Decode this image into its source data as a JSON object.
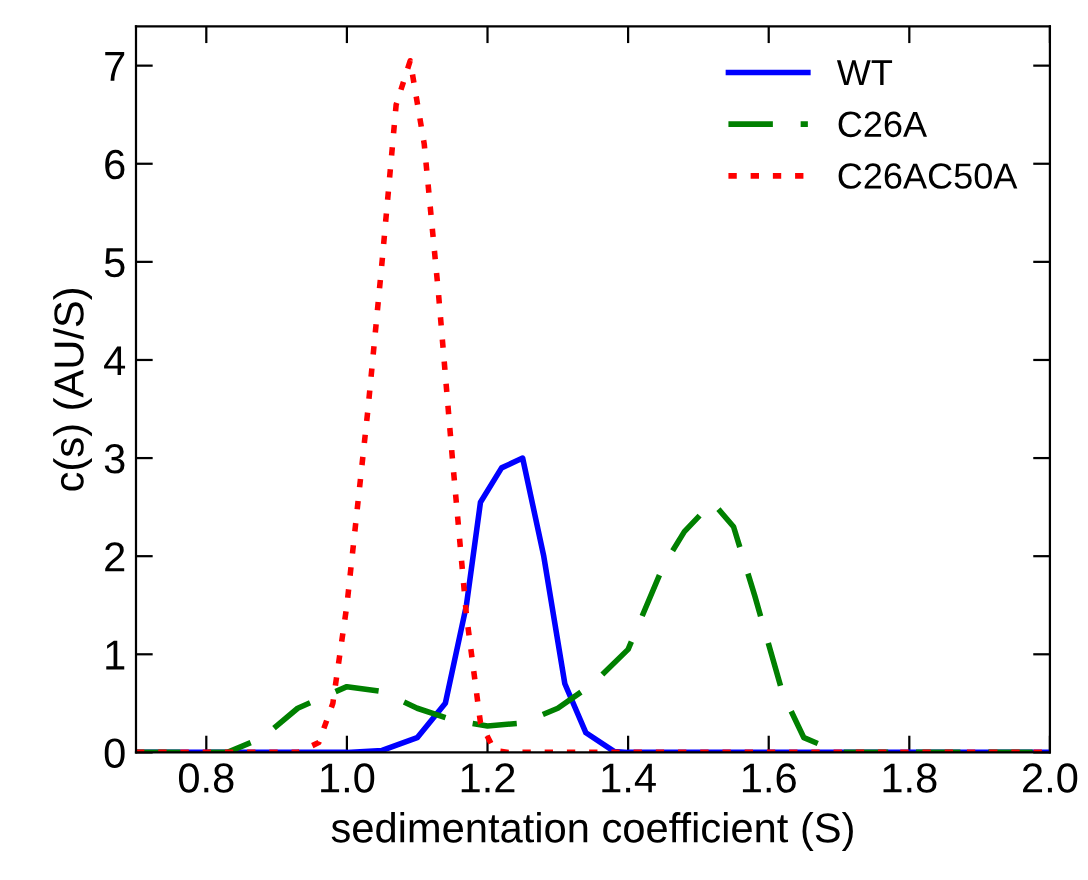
{
  "chart_data": {
    "type": "line",
    "xlabel": "sedimentation coefficient (S)",
    "ylabel": "c(s) (AU/S)",
    "xlim": [
      0.7,
      2.0
    ],
    "xticks": [
      0.8,
      {
        "value": 1,
        "label": "1.0"
      },
      1.2,
      1.4,
      1.6,
      1.8,
      {
        "value": 2,
        "label": "2.0"
      }
    ],
    "ylim": [
      0,
      7.4
    ],
    "yticks": [
      0,
      1,
      2,
      3,
      4,
      5,
      6,
      7
    ],
    "grid": false,
    "legend": "top right",
    "marker": "none",
    "series": [
      {
        "name": "WT",
        "color": "#0000ff",
        "line_style": "solid",
        "x": [
          0.7,
          1.0,
          1.05,
          1.1,
          1.14,
          1.17,
          1.19,
          1.22,
          1.25,
          1.28,
          1.31,
          1.34,
          1.38,
          1.4,
          2.0
        ],
        "values": [
          0,
          0,
          0.02,
          0.15,
          0.5,
          1.5,
          2.55,
          2.9,
          3.0,
          2.0,
          0.7,
          0.2,
          0.01,
          0,
          0
        ]
      },
      {
        "name": "C26A",
        "color": "#008000",
        "line_style": "dashed",
        "x": [
          0.7,
          0.83,
          0.88,
          0.93,
          1.0,
          1.05,
          1.1,
          1.15,
          1.2,
          1.25,
          1.3,
          1.35,
          1.4,
          1.45,
          1.48,
          1.52,
          1.55,
          1.58,
          1.62,
          1.65,
          1.7,
          2.0
        ],
        "values": [
          0,
          0,
          0.15,
          0.45,
          0.67,
          0.62,
          0.45,
          0.33,
          0.27,
          0.3,
          0.45,
          0.7,
          1.05,
          1.9,
          2.25,
          2.55,
          2.3,
          1.6,
          0.6,
          0.15,
          0,
          0
        ]
      },
      {
        "name": "C26AC50A",
        "color": "#ff0000",
        "line_style": "dotted",
        "x": [
          0.7,
          0.93,
          0.96,
          0.98,
          1.0,
          1.03,
          1.05,
          1.07,
          1.09,
          1.11,
          1.13,
          1.15,
          1.17,
          1.19,
          1.21,
          1.23,
          2.0
        ],
        "values": [
          0,
          0,
          0.1,
          0.5,
          1.5,
          3.5,
          5.0,
          6.6,
          7.05,
          6.2,
          4.7,
          3.0,
          1.4,
          0.3,
          0.02,
          0,
          0
        ]
      }
    ]
  }
}
